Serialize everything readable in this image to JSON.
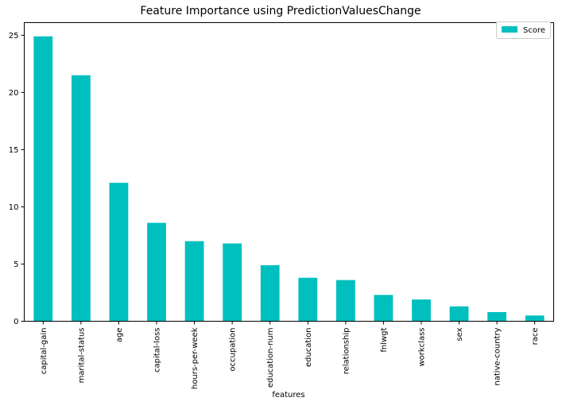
{
  "chart_data": {
    "type": "bar",
    "title": "Feature Importance using PredictionValuesChange",
    "xlabel": "features",
    "ylabel": "",
    "categories": [
      "capital-gain",
      "marital-status",
      "age",
      "capital-loss",
      "hours-per-week",
      "occupation",
      "education-num",
      "education",
      "relationship",
      "fnlwgt",
      "workclass",
      "sex",
      "native-country",
      "race"
    ],
    "series": [
      {
        "name": "Score",
        "color": "#00bfbf",
        "values": [
          24.9,
          21.5,
          12.1,
          8.6,
          7.0,
          6.8,
          4.9,
          3.8,
          3.6,
          2.3,
          1.9,
          1.3,
          0.8,
          0.5
        ]
      }
    ],
    "ylim": [
      0,
      26.1
    ],
    "yticks": [
      0,
      5,
      10,
      15,
      20,
      25
    ],
    "grid": false,
    "legend_position": "top-right"
  }
}
